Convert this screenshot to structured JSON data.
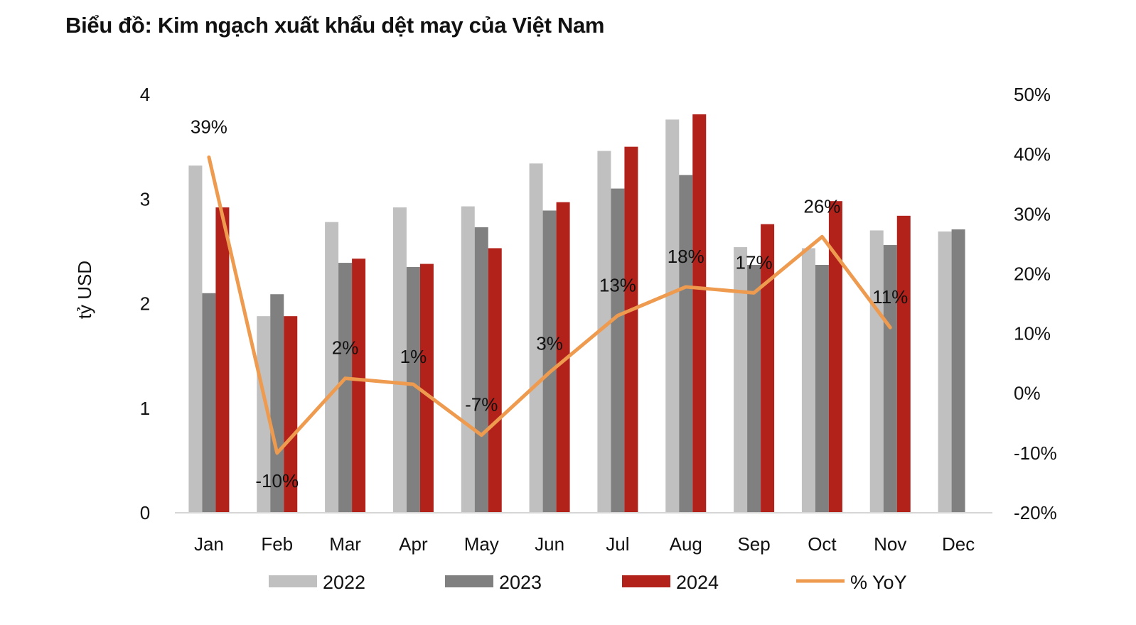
{
  "chart_data": {
    "type": "bar",
    "title": "Biểu đồ: Kim ngạch xuất khẩu dệt may của Việt Nam",
    "ylabel": "tỷ USD",
    "ylim": [
      0,
      4
    ],
    "y_ticks": [
      "0",
      "1",
      "2",
      "3",
      "4"
    ],
    "y2lim": [
      -20,
      50
    ],
    "y2_ticks": [
      "-20%",
      "-10%",
      "0%",
      "10%",
      "20%",
      "30%",
      "40%",
      "50%"
    ],
    "categories": [
      "Jan",
      "Feb",
      "Mar",
      "Apr",
      "May",
      "Jun",
      "Jul",
      "Aug",
      "Sep",
      "Oct",
      "Nov",
      "Dec"
    ],
    "series": [
      {
        "name": "2022",
        "type": "bar",
        "color": "#c0c0c0",
        "values": [
          3.32,
          1.88,
          2.78,
          2.92,
          2.93,
          3.34,
          3.46,
          3.76,
          2.54,
          2.53,
          2.7,
          2.69
        ]
      },
      {
        "name": "2023",
        "type": "bar",
        "color": "#808080",
        "values": [
          2.1,
          2.09,
          2.39,
          2.35,
          2.73,
          2.89,
          3.1,
          3.23,
          2.37,
          2.37,
          2.56,
          2.71
        ]
      },
      {
        "name": "2024",
        "type": "bar",
        "color": "#b2221b",
        "values": [
          2.92,
          1.88,
          2.43,
          2.38,
          2.53,
          2.97,
          3.5,
          3.81,
          2.76,
          2.98,
          2.84,
          null
        ]
      },
      {
        "name": "% YoY",
        "type": "line",
        "axis": "right",
        "color": "#ee9a4f",
        "values": [
          39.5,
          -10,
          2.5,
          1.5,
          -7,
          3.5,
          13,
          17.8,
          16.8,
          26.2,
          11,
          null
        ],
        "labels": [
          "39%",
          "-10%",
          "2%",
          "1%",
          "-7%",
          "3%",
          "13%",
          "18%",
          "17%",
          "26%",
          "11%",
          ""
        ]
      }
    ],
    "legend": {
      "position": "bottom"
    },
    "grid": false
  }
}
